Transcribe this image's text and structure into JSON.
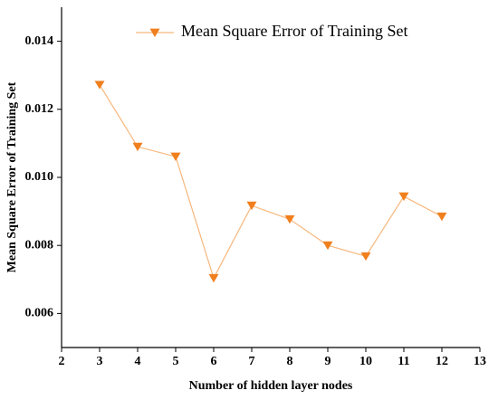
{
  "chart_data": {
    "type": "line",
    "x_label": "Number of hidden layer nodes",
    "y_label": "Mean Square Error of Training Set",
    "x": [
      3,
      4,
      5,
      6,
      7,
      8,
      9,
      10,
      11,
      12
    ],
    "series": [
      {
        "name": "Mean Square Error of Training Set",
        "color": "#f07f1e",
        "line_color": "#f7b77c",
        "values": [
          0.01272,
          0.0109,
          0.01061,
          0.00704,
          0.00917,
          0.00877,
          0.008,
          0.00768,
          0.00944,
          0.00885
        ]
      }
    ],
    "xlim": [
      2,
      13
    ],
    "xticks": [
      2,
      3,
      4,
      5,
      6,
      7,
      8,
      9,
      10,
      11,
      12,
      13
    ],
    "ylim": [
      0.005,
      0.015
    ],
    "yticks": [
      0.006,
      0.008,
      {
        "value": 0.01,
        "label": "0.010"
      },
      0.012,
      0.014
    ],
    "legend": "top"
  }
}
